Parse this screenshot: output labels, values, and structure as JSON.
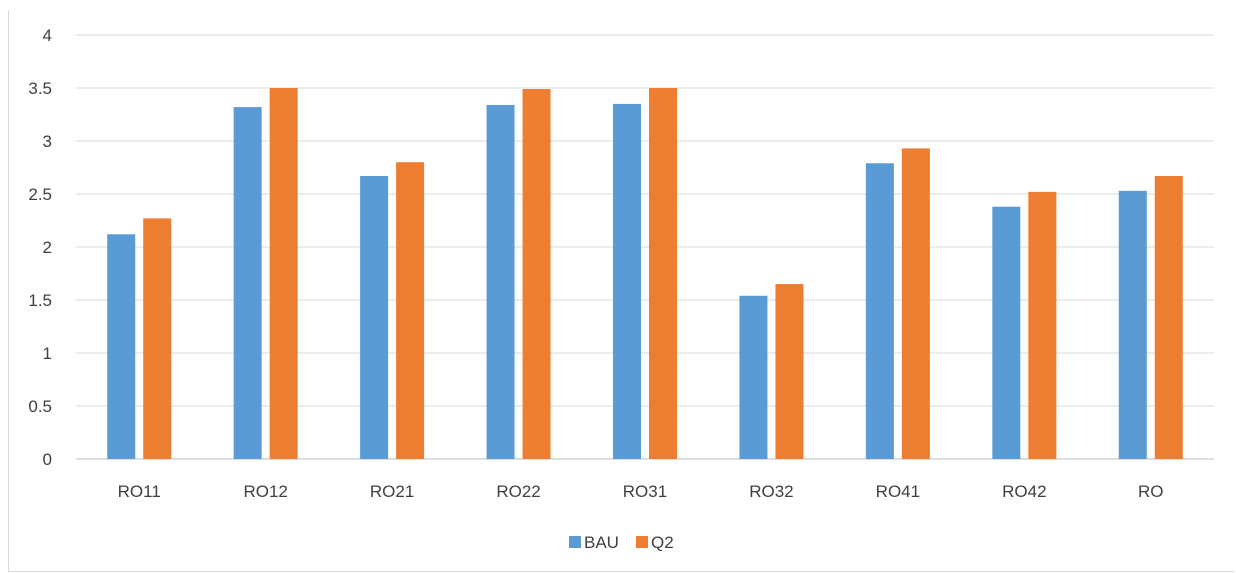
{
  "caption": "",
  "chart_data": {
    "type": "bar",
    "categories": [
      "RO11",
      "RO12",
      "RO21",
      "RO22",
      "RO31",
      "RO32",
      "RO41",
      "RO42",
      "RO"
    ],
    "series": [
      {
        "name": "BAU",
        "color": "#5b9bd5",
        "values": [
          2.12,
          3.32,
          2.67,
          3.34,
          3.35,
          1.54,
          2.79,
          2.38,
          2.53
        ]
      },
      {
        "name": "Q2",
        "color": "#ed7d31",
        "values": [
          2.27,
          3.5,
          2.8,
          3.49,
          3.5,
          1.65,
          2.93,
          2.52,
          2.67
        ]
      }
    ],
    "yticks": [
      "0",
      "0.5",
      "1",
      "1.5",
      "2",
      "2.5",
      "3",
      "3.5",
      "4"
    ],
    "ylim": [
      0,
      4
    ],
    "title": "",
    "xlabel": "",
    "ylabel": "",
    "grid": true,
    "legend_position": "bottom"
  }
}
